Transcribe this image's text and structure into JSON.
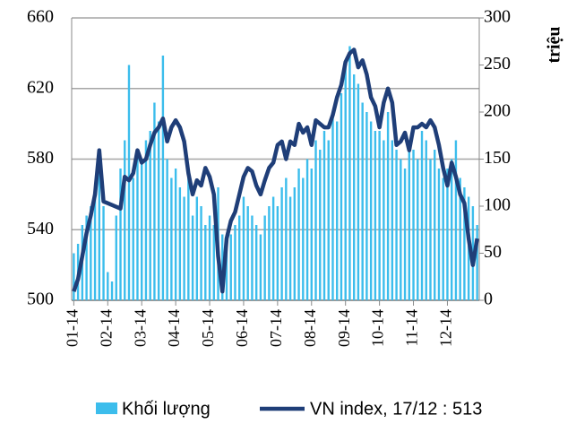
{
  "chart_data": {
    "type": "bar_line",
    "y2_label": "triệu",
    "categories": [
      "01-14",
      null,
      null,
      null,
      null,
      null,
      null,
      null,
      "02-14",
      null,
      null,
      null,
      null,
      null,
      null,
      null,
      "03-14",
      null,
      null,
      null,
      null,
      null,
      null,
      null,
      "04-14",
      null,
      null,
      null,
      null,
      null,
      null,
      null,
      "05-14",
      null,
      null,
      null,
      null,
      null,
      null,
      null,
      "06-14",
      null,
      null,
      null,
      null,
      null,
      null,
      null,
      "07-14",
      null,
      null,
      null,
      null,
      null,
      null,
      null,
      "08-14",
      null,
      null,
      null,
      null,
      null,
      null,
      null,
      "09-14",
      null,
      null,
      null,
      null,
      null,
      null,
      null,
      "10-14",
      null,
      null,
      null,
      null,
      null,
      null,
      null,
      "11-14",
      null,
      null,
      null,
      null,
      null,
      null,
      null,
      "12-14",
      null,
      null,
      null,
      null,
      null,
      null,
      null
    ],
    "series": [
      {
        "name": "Khối lượng",
        "type": "bar",
        "axis": "y2",
        "color": "#3cbdec",
        "values": [
          50,
          60,
          80,
          90,
          100,
          110,
          140,
          100,
          30,
          20,
          90,
          140,
          170,
          250,
          130,
          160,
          150,
          170,
          180,
          210,
          190,
          260,
          150,
          130,
          140,
          120,
          110,
          130,
          90,
          110,
          100,
          80,
          90,
          80,
          120,
          70,
          60,
          70,
          80,
          90,
          110,
          100,
          90,
          80,
          70,
          90,
          100,
          110,
          100,
          120,
          130,
          110,
          120,
          140,
          130,
          150,
          140,
          170,
          160,
          180,
          170,
          200,
          190,
          220,
          250,
          270,
          240,
          230,
          210,
          200,
          190,
          180,
          180,
          170,
          200,
          170,
          160,
          150,
          140,
          170,
          160,
          150,
          180,
          170,
          150,
          160,
          140,
          130,
          140,
          150,
          170,
          130,
          120,
          110,
          100,
          80
        ]
      },
      {
        "name": "VN index, 17/12 : 513",
        "type": "line",
        "color": "#1f3e78",
        "values": [
          505,
          512,
          525,
          538,
          548,
          560,
          585,
          556,
          555,
          554,
          553,
          552,
          570,
          568,
          572,
          585,
          578,
          580,
          588,
          595,
          598,
          603,
          590,
          598,
          602,
          598,
          590,
          572,
          560,
          568,
          565,
          575,
          570,
          560,
          525,
          505,
          535,
          545,
          550,
          560,
          570,
          575,
          573,
          565,
          560,
          568,
          575,
          578,
          588,
          590,
          580,
          590,
          588,
          600,
          595,
          598,
          588,
          602,
          600,
          598,
          598,
          605,
          615,
          622,
          635,
          640,
          642,
          632,
          636,
          628,
          615,
          610,
          598,
          612,
          620,
          612,
          588,
          590,
          595,
          585,
          598,
          598,
          600,
          598,
          602,
          598,
          588,
          575,
          565,
          578,
          570,
          560,
          555,
          535,
          520,
          535
        ]
      }
    ],
    "ylim": [
      500,
      660
    ],
    "yticks": [
      500,
      540,
      580,
      620,
      660
    ],
    "y2lim": [
      0,
      300
    ],
    "y2ticks": [
      0,
      50,
      100,
      150,
      200,
      250,
      300
    ],
    "grid": true,
    "legend": "bottom"
  }
}
